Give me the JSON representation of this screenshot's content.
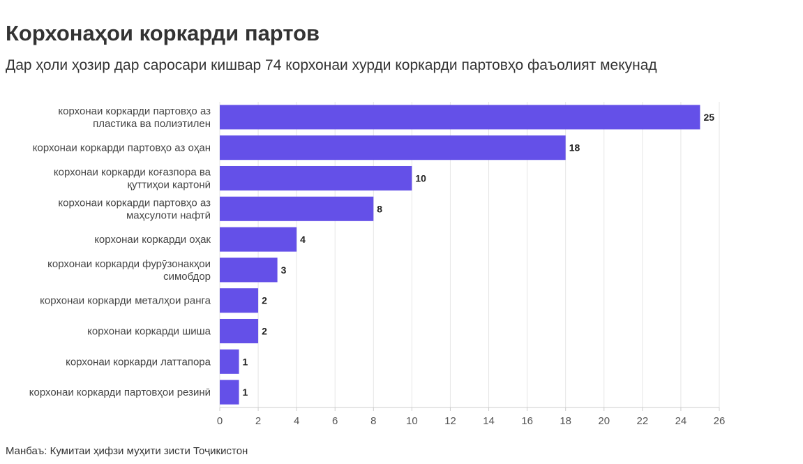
{
  "chart_data": {
    "type": "bar",
    "orientation": "horizontal",
    "title": "Корхонаҳои коркарди партов",
    "subtitle": "Дар ҳоли ҳозир дар саросари кишвар 74 корхонаи хурди коркарди партовҳо фаъолият мекунад",
    "categories": [
      [
        "корхонаи коркарди партовҳо аз",
        "пластика ва полиэтилен"
      ],
      [
        "корхонаи коркарди партовҳо аз оҳан"
      ],
      [
        "корхонаи коркарди коғазпора ва",
        "қуттиҳои картонӣ"
      ],
      [
        "корхонаи коркарди партовҳо аз",
        "маҳсулоти нафтӣ"
      ],
      [
        "корхонаи коркарди оҳак"
      ],
      [
        "корхонаи коркарди фурӯзонакҳои",
        "симобдор"
      ],
      [
        "корхонаи коркарди металҳои ранга"
      ],
      [
        "корхонаи коркарди шиша"
      ],
      [
        "корхонаи коркарди латтапора"
      ],
      [
        "корхонаи коркарди партовҳои резинӣ"
      ]
    ],
    "values": [
      25,
      18,
      10,
      8,
      4,
      3,
      2,
      2,
      1,
      1
    ],
    "xlim": [
      0,
      26
    ],
    "xticks": [
      0,
      2,
      4,
      6,
      8,
      10,
      12,
      14,
      16,
      18,
      20,
      22,
      24,
      26
    ],
    "bar_color": "#6450E8",
    "grid": true,
    "xlabel": "",
    "ylabel": ""
  },
  "source": "Манбаъ: Кумитаи ҳифзи муҳити зисти Тоҷикистон"
}
